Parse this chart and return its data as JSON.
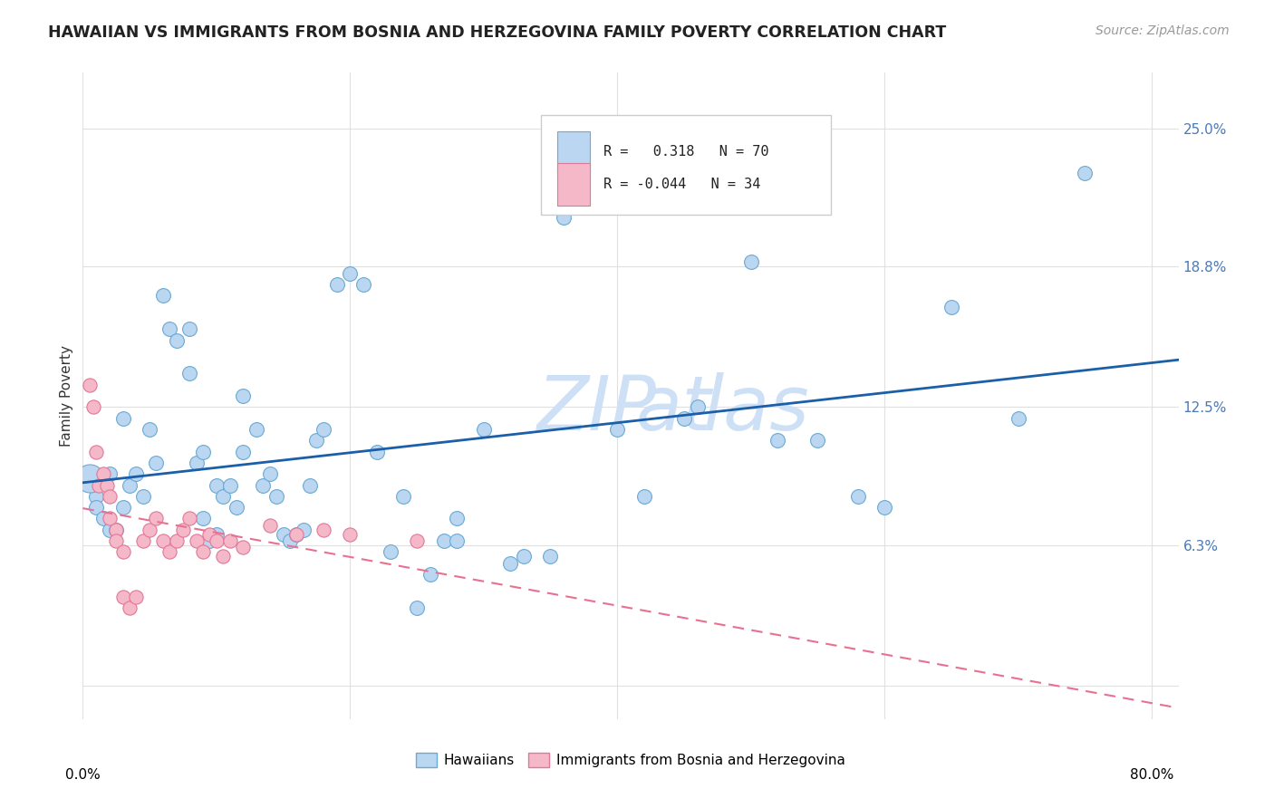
{
  "title": "HAWAIIAN VS IMMIGRANTS FROM BOSNIA AND HERZEGOVINA FAMILY POVERTY CORRELATION CHART",
  "source": "Source: ZipAtlas.com",
  "ylabel": "Family Poverty",
  "yticks": [
    0.0,
    0.063,
    0.125,
    0.188,
    0.25
  ],
  "ytick_labels": [
    "",
    "6.3%",
    "12.5%",
    "18.8%",
    "25.0%"
  ],
  "xticks": [
    0.0,
    0.2,
    0.4,
    0.6,
    0.8
  ],
  "blue_color": "#bad6f0",
  "pink_color": "#f5b8c8",
  "blue_edge_color": "#6aaad4",
  "pink_edge_color": "#e07898",
  "blue_line_color": "#1a5fa8",
  "pink_line_color": "#e87090",
  "background_color": "#ffffff",
  "grid_color": "#e0e0e0",
  "watermark_color": "#cde0f5",
  "hawaiians_scatter": [
    [
      0.005,
      0.093
    ],
    [
      0.02,
      0.095
    ],
    [
      0.03,
      0.12
    ],
    [
      0.01,
      0.085
    ],
    [
      0.01,
      0.08
    ],
    [
      0.015,
      0.075
    ],
    [
      0.02,
      0.07
    ],
    [
      0.025,
      0.07
    ],
    [
      0.03,
      0.08
    ],
    [
      0.035,
      0.09
    ],
    [
      0.04,
      0.095
    ],
    [
      0.045,
      0.085
    ],
    [
      0.05,
      0.115
    ],
    [
      0.055,
      0.1
    ],
    [
      0.06,
      0.175
    ],
    [
      0.065,
      0.16
    ],
    [
      0.07,
      0.155
    ],
    [
      0.08,
      0.14
    ],
    [
      0.08,
      0.16
    ],
    [
      0.085,
      0.1
    ],
    [
      0.09,
      0.105
    ],
    [
      0.09,
      0.075
    ],
    [
      0.095,
      0.065
    ],
    [
      0.1,
      0.068
    ],
    [
      0.1,
      0.09
    ],
    [
      0.105,
      0.085
    ],
    [
      0.11,
      0.09
    ],
    [
      0.115,
      0.08
    ],
    [
      0.12,
      0.105
    ],
    [
      0.12,
      0.13
    ],
    [
      0.13,
      0.115
    ],
    [
      0.135,
      0.09
    ],
    [
      0.14,
      0.095
    ],
    [
      0.145,
      0.085
    ],
    [
      0.15,
      0.068
    ],
    [
      0.155,
      0.065
    ],
    [
      0.16,
      0.068
    ],
    [
      0.165,
      0.07
    ],
    [
      0.17,
      0.09
    ],
    [
      0.175,
      0.11
    ],
    [
      0.18,
      0.115
    ],
    [
      0.19,
      0.18
    ],
    [
      0.2,
      0.185
    ],
    [
      0.21,
      0.18
    ],
    [
      0.22,
      0.105
    ],
    [
      0.23,
      0.06
    ],
    [
      0.24,
      0.085
    ],
    [
      0.25,
      0.035
    ],
    [
      0.26,
      0.05
    ],
    [
      0.27,
      0.065
    ],
    [
      0.28,
      0.065
    ],
    [
      0.28,
      0.075
    ],
    [
      0.3,
      0.115
    ],
    [
      0.32,
      0.055
    ],
    [
      0.33,
      0.058
    ],
    [
      0.35,
      0.058
    ],
    [
      0.36,
      0.21
    ],
    [
      0.38,
      0.245
    ],
    [
      0.4,
      0.115
    ],
    [
      0.42,
      0.085
    ],
    [
      0.45,
      0.12
    ],
    [
      0.46,
      0.125
    ],
    [
      0.5,
      0.19
    ],
    [
      0.52,
      0.11
    ],
    [
      0.55,
      0.11
    ],
    [
      0.58,
      0.085
    ],
    [
      0.6,
      0.08
    ],
    [
      0.65,
      0.17
    ],
    [
      0.7,
      0.12
    ],
    [
      0.75,
      0.23
    ]
  ],
  "bosnia_scatter": [
    [
      0.005,
      0.135
    ],
    [
      0.008,
      0.125
    ],
    [
      0.01,
      0.105
    ],
    [
      0.012,
      0.09
    ],
    [
      0.015,
      0.095
    ],
    [
      0.018,
      0.09
    ],
    [
      0.02,
      0.085
    ],
    [
      0.02,
      0.075
    ],
    [
      0.025,
      0.07
    ],
    [
      0.025,
      0.065
    ],
    [
      0.03,
      0.06
    ],
    [
      0.03,
      0.04
    ],
    [
      0.035,
      0.035
    ],
    [
      0.04,
      0.04
    ],
    [
      0.045,
      0.065
    ],
    [
      0.05,
      0.07
    ],
    [
      0.055,
      0.075
    ],
    [
      0.06,
      0.065
    ],
    [
      0.065,
      0.06
    ],
    [
      0.07,
      0.065
    ],
    [
      0.075,
      0.07
    ],
    [
      0.08,
      0.075
    ],
    [
      0.085,
      0.065
    ],
    [
      0.09,
      0.06
    ],
    [
      0.095,
      0.068
    ],
    [
      0.1,
      0.065
    ],
    [
      0.105,
      0.058
    ],
    [
      0.11,
      0.065
    ],
    [
      0.12,
      0.062
    ],
    [
      0.14,
      0.072
    ],
    [
      0.16,
      0.068
    ],
    [
      0.18,
      0.07
    ],
    [
      0.2,
      0.068
    ],
    [
      0.25,
      0.065
    ]
  ],
  "xlim": [
    0.0,
    0.82
  ],
  "ylim": [
    -0.015,
    0.275
  ]
}
